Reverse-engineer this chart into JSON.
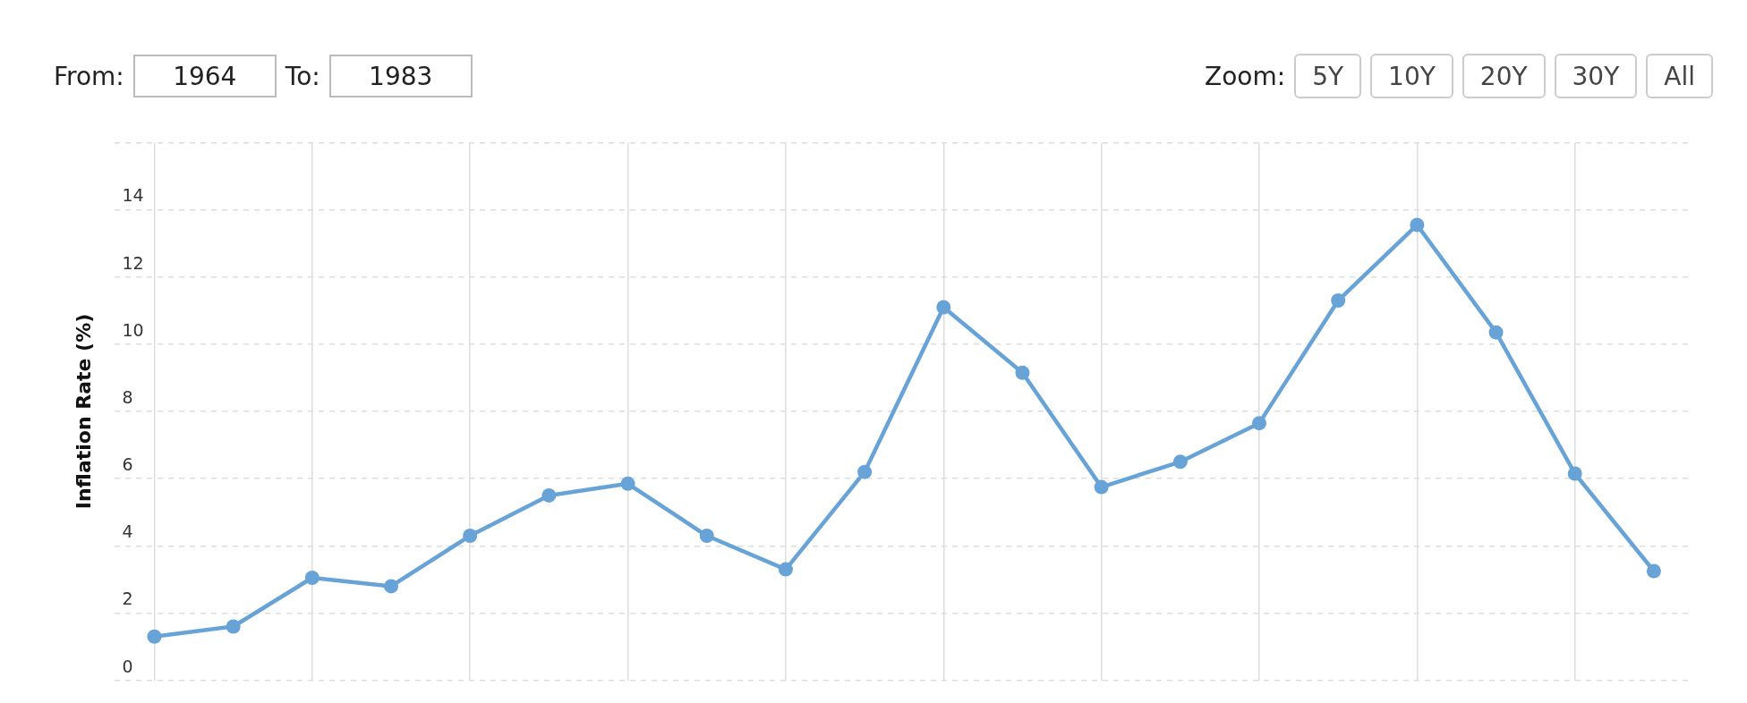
{
  "chart_data": {
    "type": "line",
    "ylabel": "Inflation Rate (%)",
    "categories": [
      null,
      null,
      null,
      null,
      null,
      null,
      null,
      null,
      null,
      null,
      null,
      null,
      null,
      null,
      null,
      null,
      null,
      null,
      null,
      null
    ],
    "series": [
      {
        "color": "#67a3d6",
        "values": [
          1.3,
          1.6,
          3.05,
          2.8,
          4.3,
          5.5,
          5.85,
          4.3,
          3.3,
          6.2,
          11.1,
          9.15,
          5.75,
          6.5,
          7.65,
          11.3,
          13.55,
          10.35,
          6.15,
          3.25
        ]
      }
    ],
    "ylim": [
      0,
      16
    ],
    "yticks": [
      0,
      2,
      4,
      6,
      8,
      10,
      12,
      14,
      {
        "value": 16,
        "label": null
      }
    ],
    "grid": true,
    "legend": false,
    "marker": "circle",
    "line_style": "solid",
    "tick_labels": "y",
    "annotations": [
      "From:",
      "1964",
      "To:",
      "1983",
      "Zoom:",
      "5Y",
      "10Y",
      "20Y",
      "30Y",
      "All"
    ]
  }
}
